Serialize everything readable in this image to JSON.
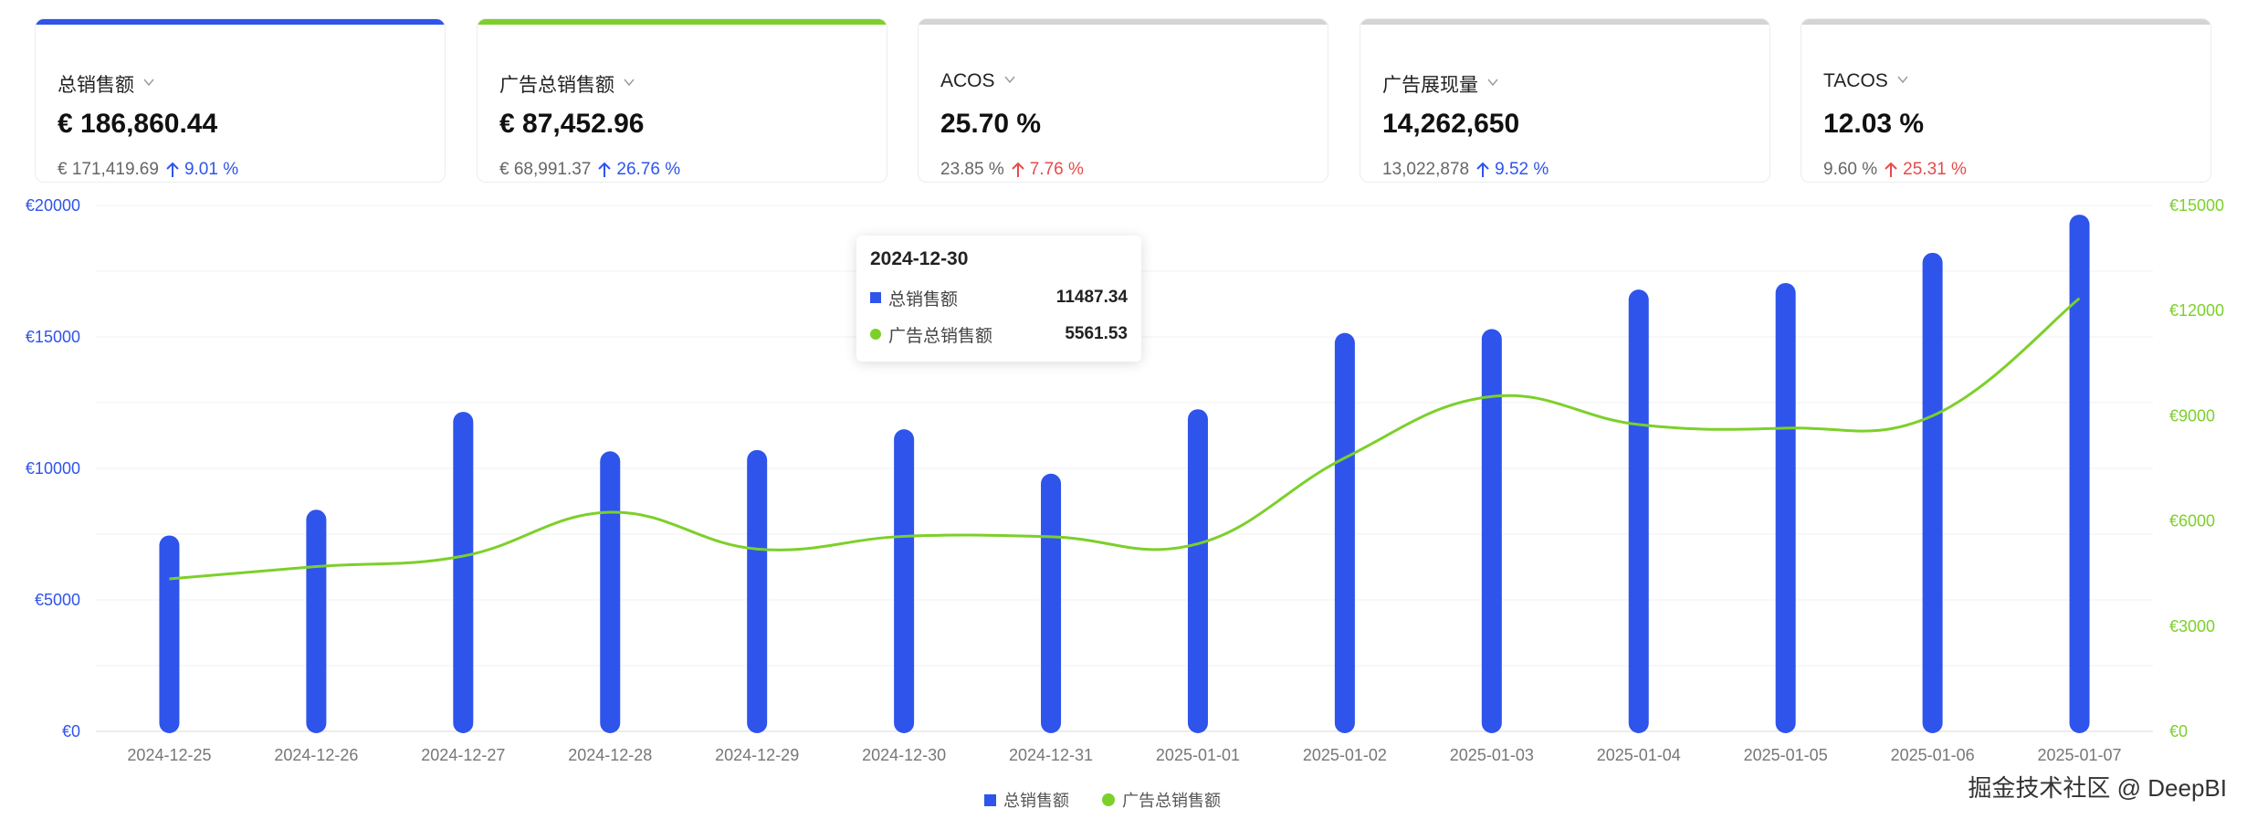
{
  "kpis": [
    {
      "title": "总销售额",
      "value": "€ 186,860.44",
      "prev": "€ 171,419.69",
      "change": "9.01 %",
      "trend": "up-good",
      "accent": "#2f54eb"
    },
    {
      "title": "广告总销售额",
      "value": "€ 87,452.96",
      "prev": "€ 68,991.37",
      "change": "26.76 %",
      "trend": "up-good",
      "accent": "#7cd02a"
    },
    {
      "title": "ACOS",
      "value": "25.70 %",
      "prev": "23.85 %",
      "change": "7.76 %",
      "trend": "up-bad",
      "accent": "#d4d4d4"
    },
    {
      "title": "广告展现量",
      "value": "14,262,650",
      "prev": "13,022,878",
      "change": "9.52 %",
      "trend": "up-good",
      "accent": "#d4d4d4"
    },
    {
      "title": "TACOS",
      "value": "12.03 %",
      "prev": "9.60 %",
      "change": "25.31 %",
      "trend": "up-bad",
      "accent": "#d4d4d4"
    }
  ],
  "chart_data": {
    "type": "bar",
    "categories": [
      "2024-12-25",
      "2024-12-26",
      "2024-12-27",
      "2024-12-28",
      "2024-12-29",
      "2024-12-30",
      "2024-12-31",
      "2025-01-01",
      "2025-01-02",
      "2025-01-03",
      "2025-01-04",
      "2025-01-05",
      "2025-01-06",
      "2025-01-07"
    ],
    "series": [
      {
        "name": "总销售额",
        "kind": "bar",
        "axis": "left",
        "color": "#2f54eb",
        "values": [
          7450,
          8430,
          12150,
          10650,
          10700,
          11487.34,
          9800,
          12250,
          15150,
          15300,
          16800,
          17050,
          18200,
          19650
        ]
      },
      {
        "name": "广告总销售额",
        "kind": "line",
        "axis": "right",
        "smooth": true,
        "color": "#7cd02a",
        "values": [
          4350,
          4700,
          5000,
          6250,
          5200,
          5561.53,
          5550,
          5350,
          7800,
          9550,
          8750,
          8650,
          9000,
          12350
        ]
      }
    ],
    "yleft": {
      "min": 0,
      "max": 20000,
      "ticks": [
        0,
        5000,
        10000,
        15000,
        20000
      ],
      "tick_labels": [
        "€0",
        "€5000",
        "€10000",
        "€15000",
        "€20000"
      ],
      "color": "#2f54eb"
    },
    "yright": {
      "min": 0,
      "max": 15000,
      "ticks": [
        0,
        3000,
        6000,
        9000,
        12000,
        15000
      ],
      "tick_labels": [
        "€0",
        "€3000",
        "€6000",
        "€9000",
        "€12000",
        "€15000"
      ],
      "color": "#7cd02a"
    },
    "grid": true,
    "legend": "bottom-center"
  },
  "tooltip": {
    "date": "2024-12-30",
    "rows": [
      {
        "name": "总销售额",
        "value": "11487.34"
      },
      {
        "name": "广告总销售额",
        "value": "5561.53"
      }
    ]
  },
  "legend": {
    "bar_label": "总销售额",
    "line_label": "广告总销售额"
  },
  "watermark": "掘金技术社区 @ DeepBI"
}
